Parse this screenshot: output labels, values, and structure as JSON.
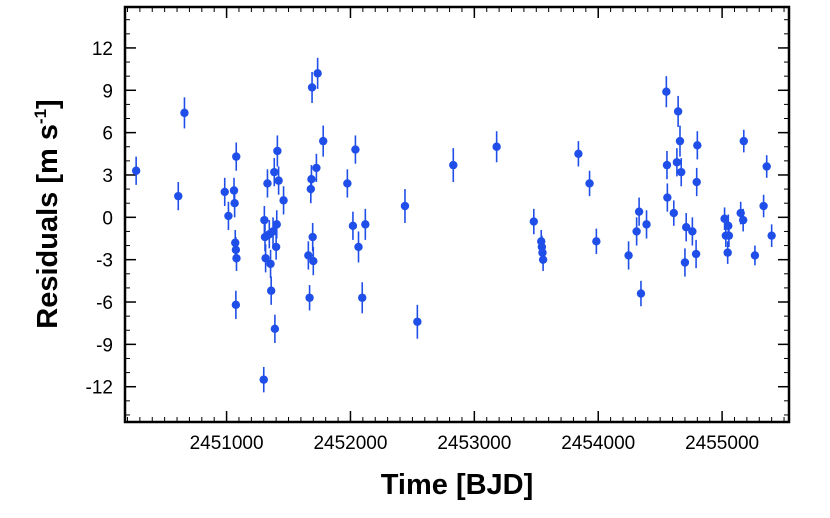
{
  "chart_data": {
    "type": "scatter",
    "xlabel": "Time [BJD]",
    "ylabel": {
      "main": "Residuals [m s",
      "sup": "-1",
      "close": "]"
    },
    "xlim": [
      2450180,
      2455540
    ],
    "ylim": [
      -14.5,
      14.9
    ],
    "x_ticks": [
      2451000,
      2452000,
      2453000,
      2454000,
      2455000
    ],
    "x_tick_labels": [
      "2451000",
      "2452000",
      "2453000",
      "2454000",
      "2455000"
    ],
    "x_minor_step": 100,
    "y_ticks": [
      -12,
      -9,
      -6,
      -3,
      0,
      3,
      6,
      9,
      12
    ],
    "y_tick_labels": [
      "-12",
      "-9",
      "-6",
      "-3",
      "0",
      "3",
      "6",
      "9",
      "12"
    ],
    "y_minor_step": 1,
    "marker_color": "#1f4fe8",
    "points": [
      {
        "x": 2450270,
        "y": 3.3,
        "err": 1.0
      },
      {
        "x": 2450610,
        "y": 1.5,
        "err": 1.0
      },
      {
        "x": 2450660,
        "y": 7.4,
        "err": 1.1
      },
      {
        "x": 2450985,
        "y": 1.8,
        "err": 1.0
      },
      {
        "x": 2451015,
        "y": 0.1,
        "err": 1.0
      },
      {
        "x": 2451060,
        "y": 1.9,
        "err": 0.9
      },
      {
        "x": 2451065,
        "y": 1.0,
        "err": 1.0
      },
      {
        "x": 2451070,
        "y": -1.8,
        "err": 0.9
      },
      {
        "x": 2451075,
        "y": -2.3,
        "err": 0.9
      },
      {
        "x": 2451080,
        "y": -2.9,
        "err": 0.9
      },
      {
        "x": 2451078,
        "y": 4.3,
        "err": 1.0
      },
      {
        "x": 2451075,
        "y": -6.2,
        "err": 1.0
      },
      {
        "x": 2451300,
        "y": -11.5,
        "err": 0.9
      },
      {
        "x": 2451305,
        "y": -0.2,
        "err": 1.0
      },
      {
        "x": 2451310,
        "y": -1.4,
        "err": 1.0
      },
      {
        "x": 2451315,
        "y": -2.9,
        "err": 1.0
      },
      {
        "x": 2451330,
        "y": 2.4,
        "err": 1.0
      },
      {
        "x": 2451345,
        "y": -1.2,
        "err": 1.0
      },
      {
        "x": 2451355,
        "y": -3.3,
        "err": 1.0
      },
      {
        "x": 2451360,
        "y": -5.2,
        "err": 1.0
      },
      {
        "x": 2451375,
        "y": -1.0,
        "err": 1.0
      },
      {
        "x": 2451385,
        "y": 3.2,
        "err": 1.0
      },
      {
        "x": 2451390,
        "y": -7.9,
        "err": 1.0
      },
      {
        "x": 2451400,
        "y": -2.1,
        "err": 0.9
      },
      {
        "x": 2451405,
        "y": -0.5,
        "err": 1.0
      },
      {
        "x": 2451410,
        "y": 4.7,
        "err": 1.1
      },
      {
        "x": 2451420,
        "y": 2.6,
        "err": 1.0
      },
      {
        "x": 2451460,
        "y": 1.2,
        "err": 1.0
      },
      {
        "x": 2451660,
        "y": -2.7,
        "err": 1.0
      },
      {
        "x": 2451670,
        "y": -5.7,
        "err": 0.9
      },
      {
        "x": 2451680,
        "y": 2.0,
        "err": 1.0
      },
      {
        "x": 2451685,
        "y": 2.7,
        "err": 1.0
      },
      {
        "x": 2451690,
        "y": 9.2,
        "err": 1.1
      },
      {
        "x": 2451695,
        "y": -1.4,
        "err": 1.0
      },
      {
        "x": 2451700,
        "y": -3.1,
        "err": 1.0
      },
      {
        "x": 2451725,
        "y": 3.5,
        "err": 1.0
      },
      {
        "x": 2451735,
        "y": 10.2,
        "err": 1.1
      },
      {
        "x": 2451780,
        "y": 5.4,
        "err": 1.1
      },
      {
        "x": 2451975,
        "y": 2.4,
        "err": 1.0
      },
      {
        "x": 2452020,
        "y": -0.6,
        "err": 1.0
      },
      {
        "x": 2452040,
        "y": 4.8,
        "err": 1.0
      },
      {
        "x": 2452065,
        "y": -2.1,
        "err": 1.1
      },
      {
        "x": 2452095,
        "y": -5.7,
        "err": 1.1
      },
      {
        "x": 2452120,
        "y": -0.5,
        "err": 1.1
      },
      {
        "x": 2452440,
        "y": 0.8,
        "err": 1.2
      },
      {
        "x": 2452540,
        "y": -7.4,
        "err": 1.2
      },
      {
        "x": 2452830,
        "y": 3.7,
        "err": 1.2
      },
      {
        "x": 2453180,
        "y": 5.0,
        "err": 1.1
      },
      {
        "x": 2453480,
        "y": -0.3,
        "err": 0.9
      },
      {
        "x": 2453540,
        "y": -1.7,
        "err": 0.8
      },
      {
        "x": 2453545,
        "y": -2.1,
        "err": 0.8
      },
      {
        "x": 2453550,
        "y": -2.5,
        "err": 0.8
      },
      {
        "x": 2453555,
        "y": -3.0,
        "err": 0.8
      },
      {
        "x": 2453840,
        "y": 4.5,
        "err": 0.9
      },
      {
        "x": 2453930,
        "y": 2.4,
        "err": 0.9
      },
      {
        "x": 2453985,
        "y": -1.7,
        "err": 0.9
      },
      {
        "x": 2454245,
        "y": -2.7,
        "err": 1.0
      },
      {
        "x": 2454310,
        "y": -1.0,
        "err": 1.0
      },
      {
        "x": 2454330,
        "y": 0.4,
        "err": 1.0
      },
      {
        "x": 2454345,
        "y": -5.4,
        "err": 0.9
      },
      {
        "x": 2454390,
        "y": -0.5,
        "err": 1.0
      },
      {
        "x": 2454550,
        "y": 8.9,
        "err": 1.1
      },
      {
        "x": 2454555,
        "y": 3.7,
        "err": 1.0
      },
      {
        "x": 2454558,
        "y": 1.4,
        "err": 1.0
      },
      {
        "x": 2454610,
        "y": 0.3,
        "err": 0.9
      },
      {
        "x": 2454635,
        "y": 3.9,
        "err": 1.0
      },
      {
        "x": 2454645,
        "y": 7.5,
        "err": 1.1
      },
      {
        "x": 2454660,
        "y": 5.4,
        "err": 1.1
      },
      {
        "x": 2454670,
        "y": 3.2,
        "err": 1.0
      },
      {
        "x": 2454700,
        "y": -3.2,
        "err": 1.0
      },
      {
        "x": 2454710,
        "y": -0.7,
        "err": 1.0
      },
      {
        "x": 2454760,
        "y": -1.0,
        "err": 1.0
      },
      {
        "x": 2454790,
        "y": -2.6,
        "err": 1.0
      },
      {
        "x": 2454795,
        "y": 2.5,
        "err": 1.0
      },
      {
        "x": 2454800,
        "y": 5.1,
        "err": 1.0
      },
      {
        "x": 2455020,
        "y": -0.1,
        "err": 0.8
      },
      {
        "x": 2455030,
        "y": -1.3,
        "err": 0.8
      },
      {
        "x": 2455050,
        "y": -0.6,
        "err": 0.8
      },
      {
        "x": 2455055,
        "y": -1.3,
        "err": 0.8
      },
      {
        "x": 2455045,
        "y": -2.5,
        "err": 0.8
      },
      {
        "x": 2455150,
        "y": 0.3,
        "err": 0.8
      },
      {
        "x": 2455170,
        "y": -0.2,
        "err": 0.8
      },
      {
        "x": 2455175,
        "y": 5.4,
        "err": 0.8
      },
      {
        "x": 2455265,
        "y": -2.7,
        "err": 0.7
      },
      {
        "x": 2455335,
        "y": 0.8,
        "err": 0.8
      },
      {
        "x": 2455360,
        "y": 3.6,
        "err": 0.8
      },
      {
        "x": 2455400,
        "y": -1.3,
        "err": 0.8
      }
    ]
  }
}
